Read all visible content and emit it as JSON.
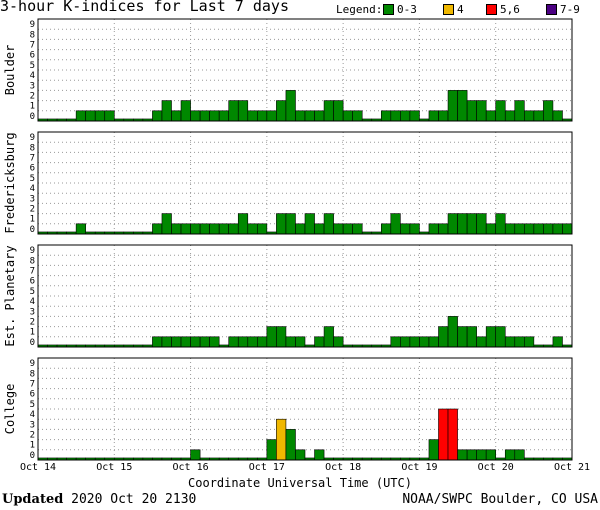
{
  "title": "3-hour K-indices for Last 7 days",
  "legend": {
    "label": "Legend:",
    "items": [
      {
        "label": "0-3",
        "color": "#008800"
      },
      {
        "label": "4",
        "color": "#f0b800"
      },
      {
        "label": "5,6",
        "color": "#ff0000"
      },
      {
        "label": "7-9",
        "color": "#4b0082"
      }
    ]
  },
  "footer": {
    "updated_label": "Updated",
    "updated_value": "2020 Oct 20 2130",
    "source": "NOAA/SWPC Boulder, CO USA"
  },
  "chart_data": {
    "type": "bar",
    "xlabel": "Coordinate Universal Time (UTC)",
    "x_ticks": [
      "Oct 14",
      "Oct 15",
      "Oct 16",
      "Oct 17",
      "Oct 18",
      "Oct 19",
      "Oct 20",
      "Oct 21"
    ],
    "ylim": [
      0,
      9
    ],
    "y_ticks": [
      0,
      1,
      2,
      3,
      4,
      5,
      6,
      7,
      8,
      9
    ],
    "bins_per_day": 8,
    "color_rules": [
      {
        "range": "0-3",
        "color": "#008800"
      },
      {
        "range": "4",
        "color": "#f0b800"
      },
      {
        "range": "5,6",
        "color": "#ff0000"
      },
      {
        "range": "7-9",
        "color": "#4b0082"
      }
    ],
    "panels": [
      {
        "ylabel": "Boulder",
        "values": [
          0,
          0,
          0,
          0,
          1,
          1,
          1,
          1,
          0,
          0,
          0,
          0,
          1,
          2,
          1,
          2,
          1,
          1,
          1,
          1,
          2,
          2,
          1,
          1,
          1,
          2,
          3,
          1,
          1,
          1,
          2,
          2,
          1,
          1,
          0,
          0,
          1,
          1,
          1,
          1,
          0,
          1,
          1,
          3,
          3,
          2,
          2,
          1,
          2,
          1,
          2,
          1,
          1,
          2,
          1,
          0
        ]
      },
      {
        "ylabel": "Fredericksburg",
        "values": [
          0,
          0,
          0,
          0,
          1,
          0,
          0,
          0,
          0,
          0,
          0,
          0,
          1,
          2,
          1,
          1,
          1,
          1,
          1,
          1,
          1,
          2,
          1,
          1,
          0,
          2,
          2,
          1,
          2,
          1,
          2,
          1,
          1,
          1,
          0,
          0,
          1,
          2,
          1,
          1,
          0,
          1,
          1,
          2,
          2,
          2,
          2,
          1,
          2,
          1,
          1,
          1,
          1,
          1,
          1,
          1
        ]
      },
      {
        "ylabel": "Est. Planetary",
        "values": [
          0,
          0,
          0,
          0,
          0,
          0,
          0,
          0,
          0,
          0,
          0,
          0,
          1,
          1,
          1,
          1,
          1,
          1,
          1,
          0,
          1,
          1,
          1,
          1,
          2,
          2,
          1,
          1,
          0,
          1,
          2,
          1,
          0,
          0,
          0,
          0,
          0,
          1,
          1,
          1,
          1,
          1,
          2,
          3,
          2,
          2,
          1,
          2,
          2,
          1,
          1,
          1,
          0,
          0,
          1,
          0
        ]
      },
      {
        "ylabel": "College",
        "values": [
          0,
          0,
          0,
          0,
          0,
          0,
          0,
          0,
          0,
          0,
          0,
          0,
          0,
          0,
          0,
          0,
          1,
          0,
          0,
          0,
          0,
          0,
          0,
          0,
          2,
          4,
          3,
          1,
          0,
          1,
          0,
          0,
          0,
          0,
          0,
          0,
          0,
          0,
          0,
          0,
          0,
          2,
          5,
          5,
          1,
          1,
          1,
          1,
          0,
          1,
          1,
          0,
          0,
          0,
          0,
          0
        ]
      }
    ]
  }
}
